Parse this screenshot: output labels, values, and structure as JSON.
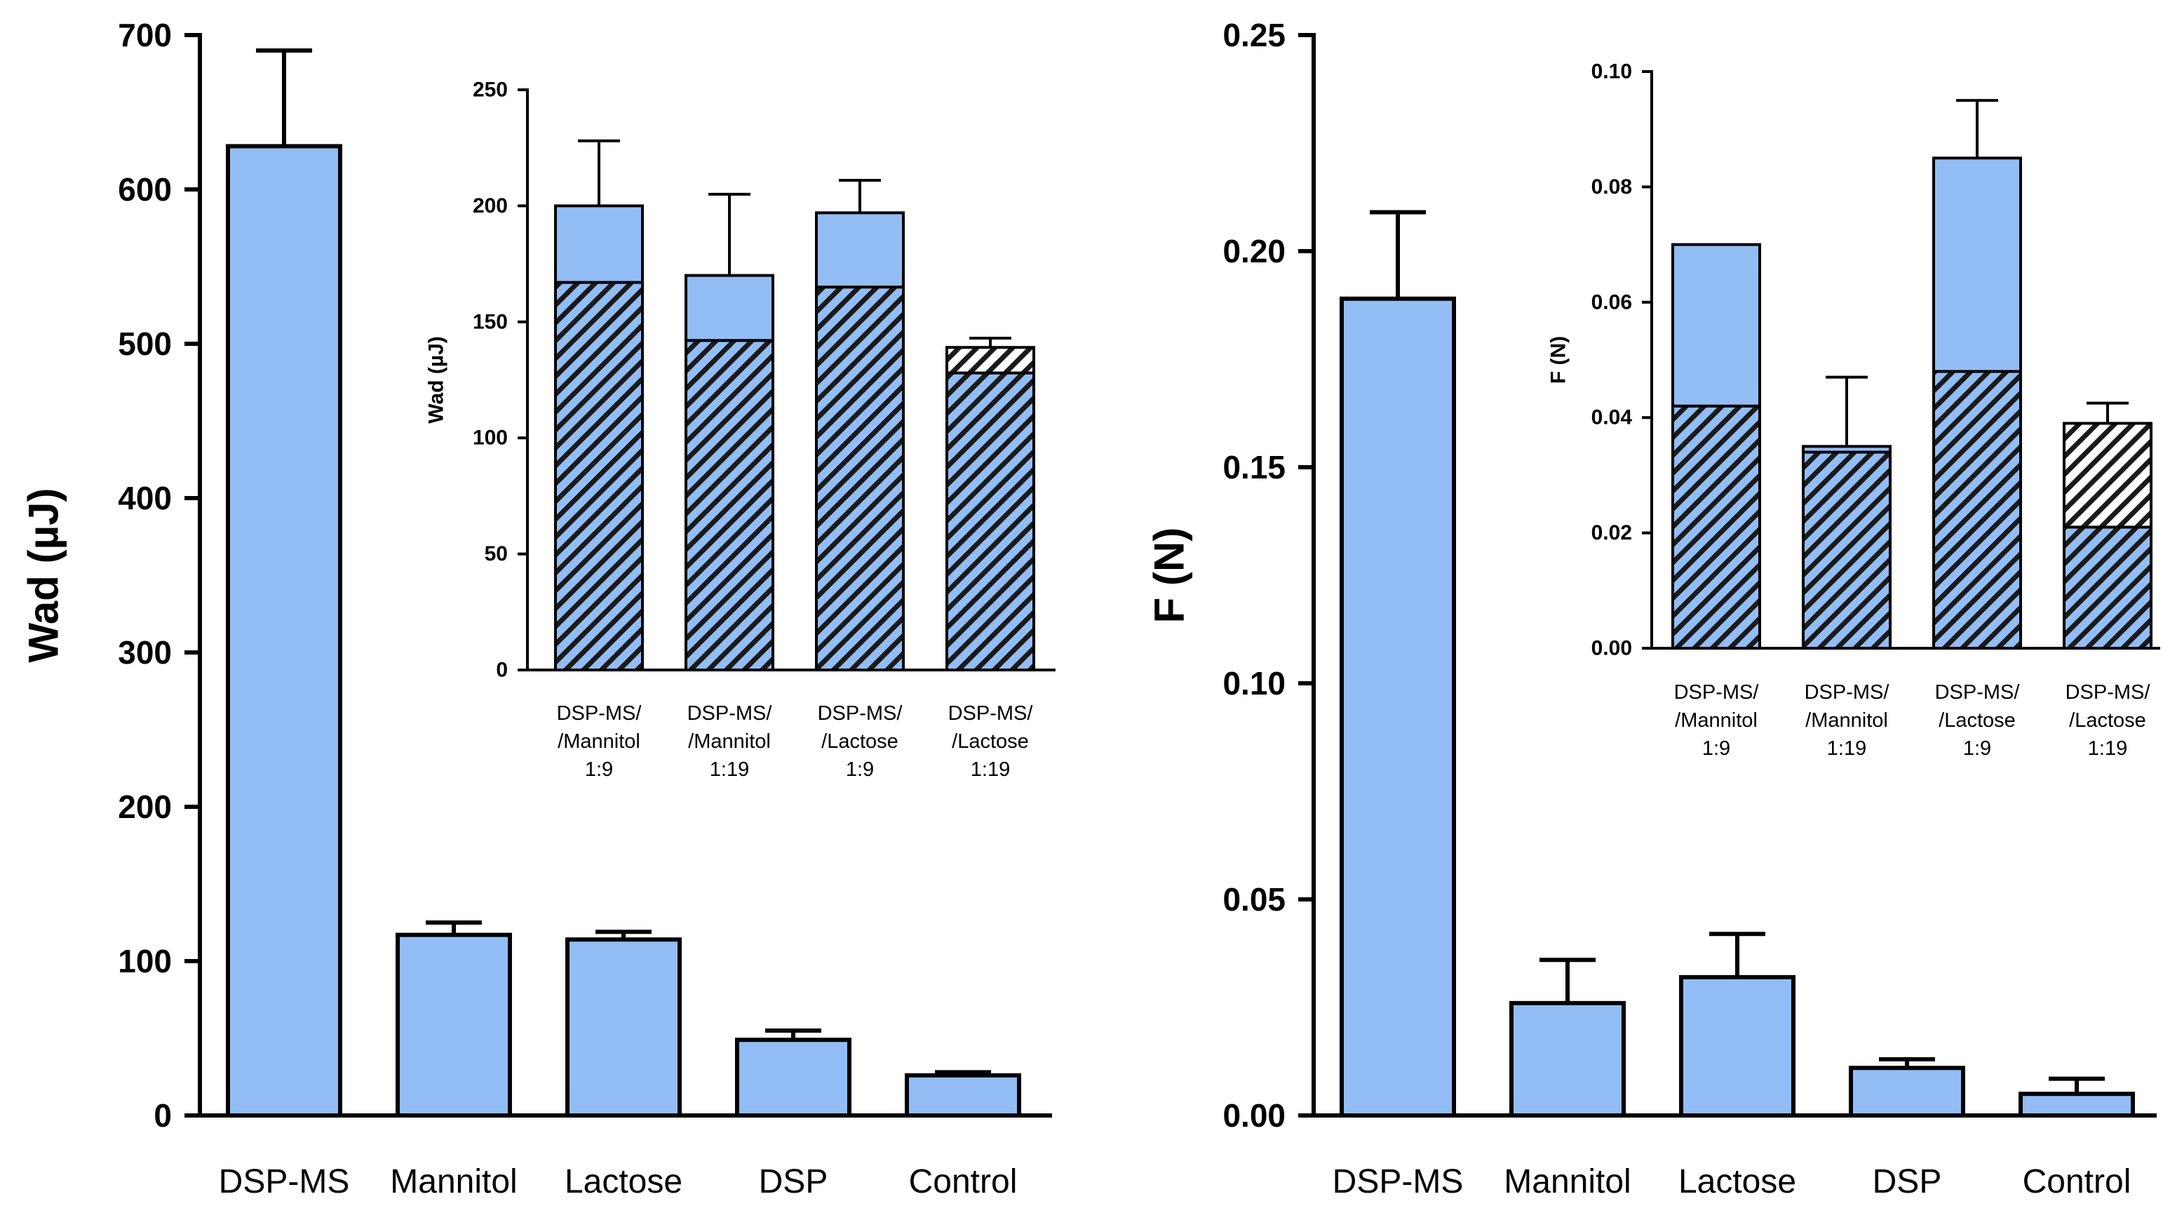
{
  "colors": {
    "bar_fill": "#93bdf5",
    "stroke": "#000000",
    "hatch_white_bg": "#ffffff"
  },
  "chart_data": [
    {
      "id": "left-main",
      "type": "bar",
      "ylabel": "Wad (µJ)",
      "xlabel": "",
      "ylim": [
        0,
        700
      ],
      "yticks": [
        "0",
        "100",
        "200",
        "300",
        "400",
        "500",
        "600",
        "700"
      ],
      "categories": [
        "DSP-MS",
        "Mannitol",
        "Lactose",
        "DSP",
        "Control"
      ],
      "values": [
        628,
        117,
        114,
        49,
        26
      ],
      "errors": [
        62,
        8,
        5,
        6,
        2
      ]
    },
    {
      "id": "left-inset",
      "type": "bar",
      "stacked": true,
      "ylabel": "Wad (µJ)",
      "ylim": [
        0,
        250
      ],
      "yticks": [
        "0",
        "50",
        "100",
        "150",
        "200",
        "250"
      ],
      "categories": [
        [
          "DSP-MS/",
          "/Mannitol",
          "1:9"
        ],
        [
          "DSP-MS/",
          "/Mannitol",
          "1:19"
        ],
        [
          "DSP-MS/",
          "/Lactose",
          "1:9"
        ],
        [
          "DSP-MS/",
          "/Lactose",
          "1:19"
        ]
      ],
      "series": [
        {
          "name": "hatched (blue)",
          "values": [
            167,
            142,
            165,
            128
          ]
        },
        {
          "name": "hatched (white)",
          "values": [
            0,
            0,
            0,
            11
          ]
        },
        {
          "name": "solid (blue)",
          "values": [
            33,
            28,
            32,
            0
          ]
        }
      ],
      "totals": [
        200,
        170,
        197,
        139
      ],
      "errors": [
        28,
        35,
        14,
        4
      ]
    },
    {
      "id": "right-main",
      "type": "bar",
      "ylabel": "F (N)",
      "xlabel": "",
      "ylim": [
        0,
        0.25
      ],
      "yticks": [
        "0.00",
        "0.05",
        "0.10",
        "0.15",
        "0.20",
        "0.25"
      ],
      "categories": [
        "DSP-MS",
        "Mannitol",
        "Lactose",
        "DSP",
        "Control"
      ],
      "values": [
        0.189,
        0.026,
        0.032,
        0.011,
        0.005
      ],
      "errors": [
        0.02,
        0.01,
        0.01,
        0.002,
        0.0035
      ]
    },
    {
      "id": "right-inset",
      "type": "bar",
      "stacked": true,
      "ylabel": "F (N)",
      "ylim": [
        0,
        0.1
      ],
      "yticks": [
        "0.00",
        "0.02",
        "0.04",
        "0.06",
        "0.08",
        "0.10"
      ],
      "categories": [
        [
          "DSP-MS/",
          "/Mannitol",
          "1:9"
        ],
        [
          "DSP-MS/",
          "/Mannitol",
          "1:19"
        ],
        [
          "DSP-MS/",
          "/Lactose",
          "1:9"
        ],
        [
          "DSP-MS/",
          "/Lactose",
          "1:19"
        ]
      ],
      "series": [
        {
          "name": "hatched (blue)",
          "values": [
            0.042,
            0.034,
            0.048,
            0.021
          ]
        },
        {
          "name": "hatched (white)",
          "values": [
            0,
            0,
            0,
            0.018
          ]
        },
        {
          "name": "solid (blue)",
          "values": [
            0.028,
            0.001,
            0.037,
            0
          ]
        }
      ],
      "totals": [
        0.07,
        0.035,
        0.085,
        0.039
      ],
      "errors": [
        0,
        0.012,
        0.01,
        0.0035
      ]
    }
  ]
}
